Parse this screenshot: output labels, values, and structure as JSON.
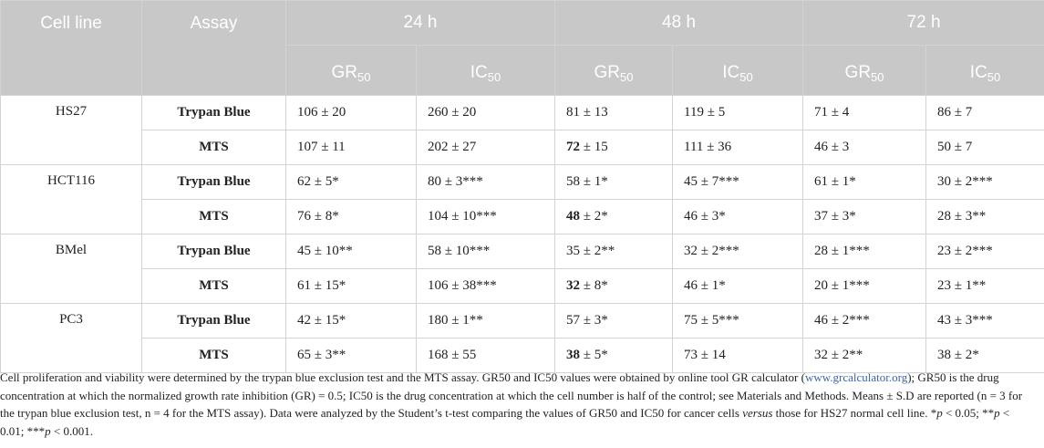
{
  "table": {
    "headers": {
      "cell_line": "Cell line",
      "assay": "Assay",
      "times": [
        "24 h",
        "48 h",
        "72 h"
      ],
      "metrics": [
        {
          "base": "GR",
          "sub": "50"
        },
        {
          "base": "IC",
          "sub": "50"
        },
        {
          "base": "GR",
          "sub": "50"
        },
        {
          "base": "IC",
          "sub": "50"
        },
        {
          "base": "GR",
          "sub": "50"
        },
        {
          "base": "IC",
          "sub": "50"
        }
      ]
    },
    "groups": [
      {
        "cell_line": "HS27",
        "rows": [
          {
            "assay": "Trypan Blue",
            "cells": [
              {
                "v": "106",
                "r": " ± 20"
              },
              {
                "v": "260",
                "r": " ± 20"
              },
              {
                "v": "81",
                "r": " ± 13"
              },
              {
                "v": "119",
                "r": " ± 5"
              },
              {
                "v": "71",
                "r": " ± 4"
              },
              {
                "v": "86",
                "r": " ± 7"
              }
            ]
          },
          {
            "assay": "MTS",
            "cells": [
              {
                "v": "107",
                "r": " ± 11"
              },
              {
                "v": "202",
                "r": " ± 27"
              },
              {
                "v": "72",
                "r": " ± 15",
                "bold": true
              },
              {
                "v": "111",
                "r": " ± 36"
              },
              {
                "v": "46",
                "r": " ± 3"
              },
              {
                "v": "50",
                "r": " ± 7"
              }
            ]
          }
        ]
      },
      {
        "cell_line": "HCT116",
        "rows": [
          {
            "assay": "Trypan Blue",
            "cells": [
              {
                "v": "62",
                "r": " ± 5*"
              },
              {
                "v": "80",
                "r": " ± 3***"
              },
              {
                "v": "58",
                "r": " ± 1*"
              },
              {
                "v": "45",
                "r": " ± 7***"
              },
              {
                "v": "61",
                "r": " ± 1*"
              },
              {
                "v": "30",
                "r": " ± 2***"
              }
            ]
          },
          {
            "assay": "MTS",
            "cells": [
              {
                "v": "76",
                "r": " ± 8*"
              },
              {
                "v": "104",
                "r": " ± 10***"
              },
              {
                "v": "48",
                "r": " ± 2*",
                "bold": true
              },
              {
                "v": "46",
                "r": " ± 3*"
              },
              {
                "v": "37",
                "r": " ± 3*"
              },
              {
                "v": "28",
                "r": " ± 3**"
              }
            ]
          }
        ]
      },
      {
        "cell_line": "BMel",
        "rows": [
          {
            "assay": "Trypan Blue",
            "cells": [
              {
                "v": "45",
                "r": " ± 10**"
              },
              {
                "v": "58",
                "r": " ± 10***"
              },
              {
                "v": "35",
                "r": " ± 2**"
              },
              {
                "v": "32",
                "r": " ± 2***"
              },
              {
                "v": "28",
                "r": " ± 1***"
              },
              {
                "v": "23",
                "r": " ± 2***"
              }
            ]
          },
          {
            "assay": "MTS",
            "cells": [
              {
                "v": "61",
                "r": " ± 15*"
              },
              {
                "v": "106",
                "r": " ± 38***"
              },
              {
                "v": "32",
                "r": " ± 8*",
                "bold": true
              },
              {
                "v": "46",
                "r": " ± 1*"
              },
              {
                "v": "20",
                "r": " ± 1***"
              },
              {
                "v": "23",
                "r": " ± 1**"
              }
            ]
          }
        ]
      },
      {
        "cell_line": "PC3",
        "rows": [
          {
            "assay": "Trypan Blue",
            "cells": [
              {
                "v": "42",
                "r": " ± 15*"
              },
              {
                "v": "180",
                "r": " ± 1**"
              },
              {
                "v": "57",
                "r": " ± 3*"
              },
              {
                "v": "75",
                "r": " ± 5***"
              },
              {
                "v": "46",
                "r": " ± 2***"
              },
              {
                "v": "43",
                "r": " ± 3***"
              }
            ]
          },
          {
            "assay": "MTS",
            "cells": [
              {
                "v": "65",
                "r": " ± 3**"
              },
              {
                "v": "168",
                "r": " ± 55"
              },
              {
                "v": "38",
                "r": " ± 5*",
                "bold": true
              },
              {
                "v": "73",
                "r": " ± 14"
              },
              {
                "v": "32",
                "r": " ± 2**"
              },
              {
                "v": "38",
                "r": " ± 2*"
              }
            ]
          }
        ]
      }
    ]
  },
  "footnote": {
    "p1": "Cell proliferation and viability were determined by the trypan blue exclusion test and the MTS assay. GR50 and IC50 values were obtained by online tool GR calculator (",
    "url": "www.grcalculator.org",
    "p2": "); GR50 is the drug concentration at which the normalized growth rate inhibition (GR) = 0.5; IC50 is the drug concentration at which the cell number is half of the control; see Materials and Methods. Means ± S.D are reported (n = 3 for the trypan blue exclusion test, n = 4 for the MTS assay). Data were analyzed by the Student’s t-test comparing the values of GR50 and IC50 for cancer cells ",
    "versus": "versus",
    "p3": " those for HS27 normal cell line. *",
    "p_a": "p",
    "p4": " < 0.05; **",
    "p_b": "p",
    "p5": " < 0.01; ***",
    "p_c": "p",
    "p6": " < 0.001."
  }
}
